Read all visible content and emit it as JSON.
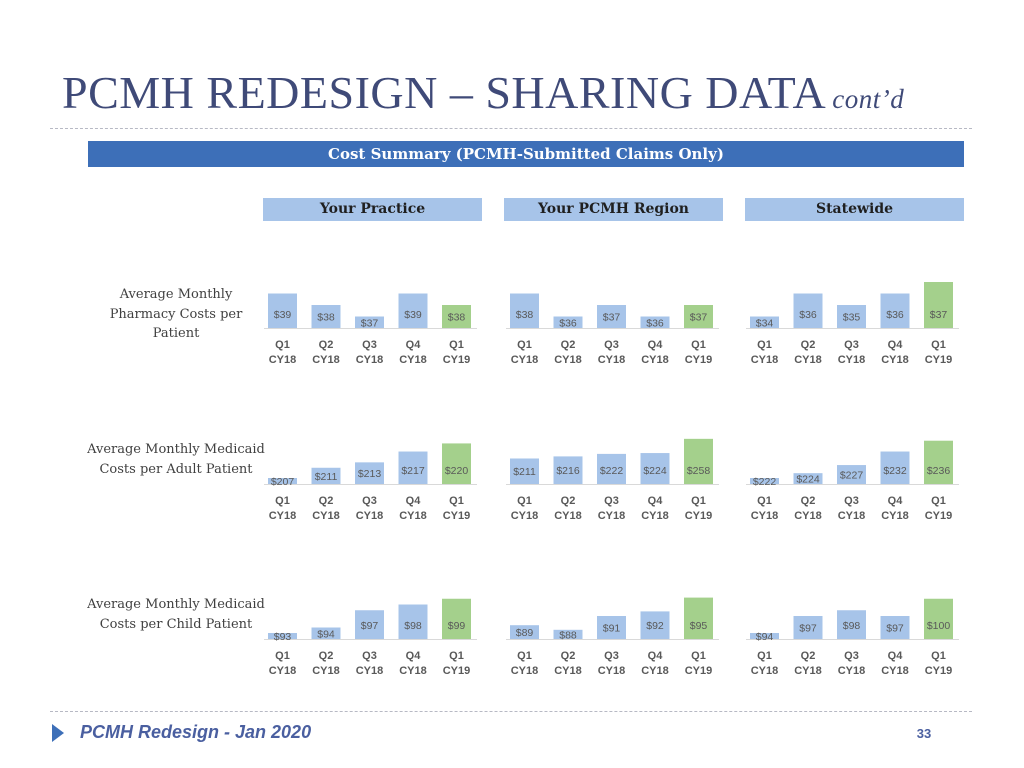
{
  "slide": {
    "title": "PCMH REDESIGN – SHARING DATA",
    "title_suffix": "cont’d",
    "banner": "Cost Summary (PCMH-Submitted Claims Only)",
    "columns": [
      "Your Practice",
      "Your PCMH Region",
      "Statewide"
    ],
    "rows": [
      "Average Monthly Pharmacy Costs per Patient",
      "Average Monthly Medicaid Costs per Adult Patient",
      "Average Monthly Medicaid Costs per Child Patient"
    ],
    "footer": "PCMH Redesign - Jan 2020",
    "page_number": "33"
  },
  "colors": {
    "title": "#3f4a78",
    "banner": "#3d6fb8",
    "column_header": "#a7c4e9",
    "bar_blue": "#a7c4e9",
    "bar_green": "#a4d08c",
    "footer_text": "#4a5fa0"
  },
  "chart_data": [
    {
      "type": "bar",
      "row": "Average Monthly Pharmacy Costs per Patient",
      "column": "Your Practice",
      "categories": [
        "Q1 CY18",
        "Q2 CY18",
        "Q3 CY18",
        "Q4 CY18",
        "Q1 CY19"
      ],
      "values": [
        39,
        38,
        37,
        39,
        38
      ],
      "labels": [
        "$39",
        "$38",
        "$37",
        "$39",
        "$38"
      ],
      "highlight_index": 4,
      "ylim": [
        36,
        40
      ]
    },
    {
      "type": "bar",
      "row": "Average Monthly Pharmacy Costs per Patient",
      "column": "Your PCMH Region",
      "categories": [
        "Q1 CY18",
        "Q2 CY18",
        "Q3 CY18",
        "Q4 CY18",
        "Q1 CY19"
      ],
      "values": [
        38,
        36,
        37,
        36,
        37
      ],
      "labels": [
        "$38",
        "$36",
        "$37",
        "$36",
        "$37"
      ],
      "highlight_index": 4,
      "ylim": [
        35,
        39
      ]
    },
    {
      "type": "bar",
      "row": "Average Monthly Pharmacy Costs per Patient",
      "column": "Statewide",
      "categories": [
        "Q1 CY18",
        "Q2 CY18",
        "Q3 CY18",
        "Q4 CY18",
        "Q1 CY19"
      ],
      "values": [
        34,
        36,
        35,
        36,
        37
      ],
      "labels": [
        "$34",
        "$36",
        "$35",
        "$36",
        "$37"
      ],
      "highlight_index": 4,
      "ylim": [
        33,
        37
      ]
    },
    {
      "type": "bar",
      "row": "Average Monthly Medicaid Costs per Adult Patient",
      "column": "Your Practice",
      "categories": [
        "Q1 CY18",
        "Q2 CY18",
        "Q3 CY18",
        "Q4 CY18",
        "Q1 CY19"
      ],
      "values": [
        207,
        211,
        213,
        217,
        220
      ],
      "labels": [
        "$207",
        "$211",
        "$213",
        "$217",
        "$220"
      ],
      "highlight_index": 4,
      "ylim": [
        205,
        222
      ]
    },
    {
      "type": "bar",
      "row": "Average Monthly Medicaid Costs per Adult Patient",
      "column": "Your PCMH Region",
      "categories": [
        "Q1 CY18",
        "Q2 CY18",
        "Q3 CY18",
        "Q4 CY18",
        "Q1 CY19"
      ],
      "values": [
        211,
        216,
        222,
        224,
        258
      ],
      "labels": [
        "$211",
        "$216",
        "$222",
        "$224",
        "$258"
      ],
      "highlight_index": 4,
      "ylim": [
        150,
        260
      ]
    },
    {
      "type": "bar",
      "row": "Average Monthly Medicaid Costs per Adult Patient",
      "column": "Statewide",
      "categories": [
        "Q1 CY18",
        "Q2 CY18",
        "Q3 CY18",
        "Q4 CY18",
        "Q1 CY19"
      ],
      "values": [
        222,
        224,
        227,
        232,
        236
      ],
      "labels": [
        "$222",
        "$224",
        "$227",
        "$232",
        "$236"
      ],
      "highlight_index": 4,
      "ylim": [
        220,
        237
      ]
    },
    {
      "type": "bar",
      "row": "Average Monthly Medicaid Costs per Child Patient",
      "column": "Your Practice",
      "categories": [
        "Q1 CY18",
        "Q2 CY18",
        "Q3 CY18",
        "Q4 CY18",
        "Q1 CY19"
      ],
      "values": [
        93,
        94,
        97,
        98,
        99
      ],
      "labels": [
        "$93",
        "$94",
        "$97",
        "$98",
        "$99"
      ],
      "highlight_index": 4,
      "ylim": [
        92,
        100
      ]
    },
    {
      "type": "bar",
      "row": "Average Monthly Medicaid Costs per Child Patient",
      "column": "Your PCMH Region",
      "categories": [
        "Q1 CY18",
        "Q2 CY18",
        "Q3 CY18",
        "Q4 CY18",
        "Q1 CY19"
      ],
      "values": [
        89,
        88,
        91,
        92,
        95
      ],
      "labels": [
        "$89",
        "$88",
        "$91",
        "$92",
        "$95"
      ],
      "highlight_index": 4,
      "ylim": [
        86,
        96
      ]
    },
    {
      "type": "bar",
      "row": "Average Monthly Medicaid Costs per Child Patient",
      "column": "Statewide",
      "categories": [
        "Q1 CY18",
        "Q2 CY18",
        "Q3 CY18",
        "Q4 CY18",
        "Q1 CY19"
      ],
      "values": [
        94,
        97,
        98,
        97,
        100
      ],
      "labels": [
        "$94",
        "$97",
        "$98",
        "$97",
        "$100"
      ],
      "highlight_index": 4,
      "ylim": [
        93,
        101
      ]
    }
  ]
}
